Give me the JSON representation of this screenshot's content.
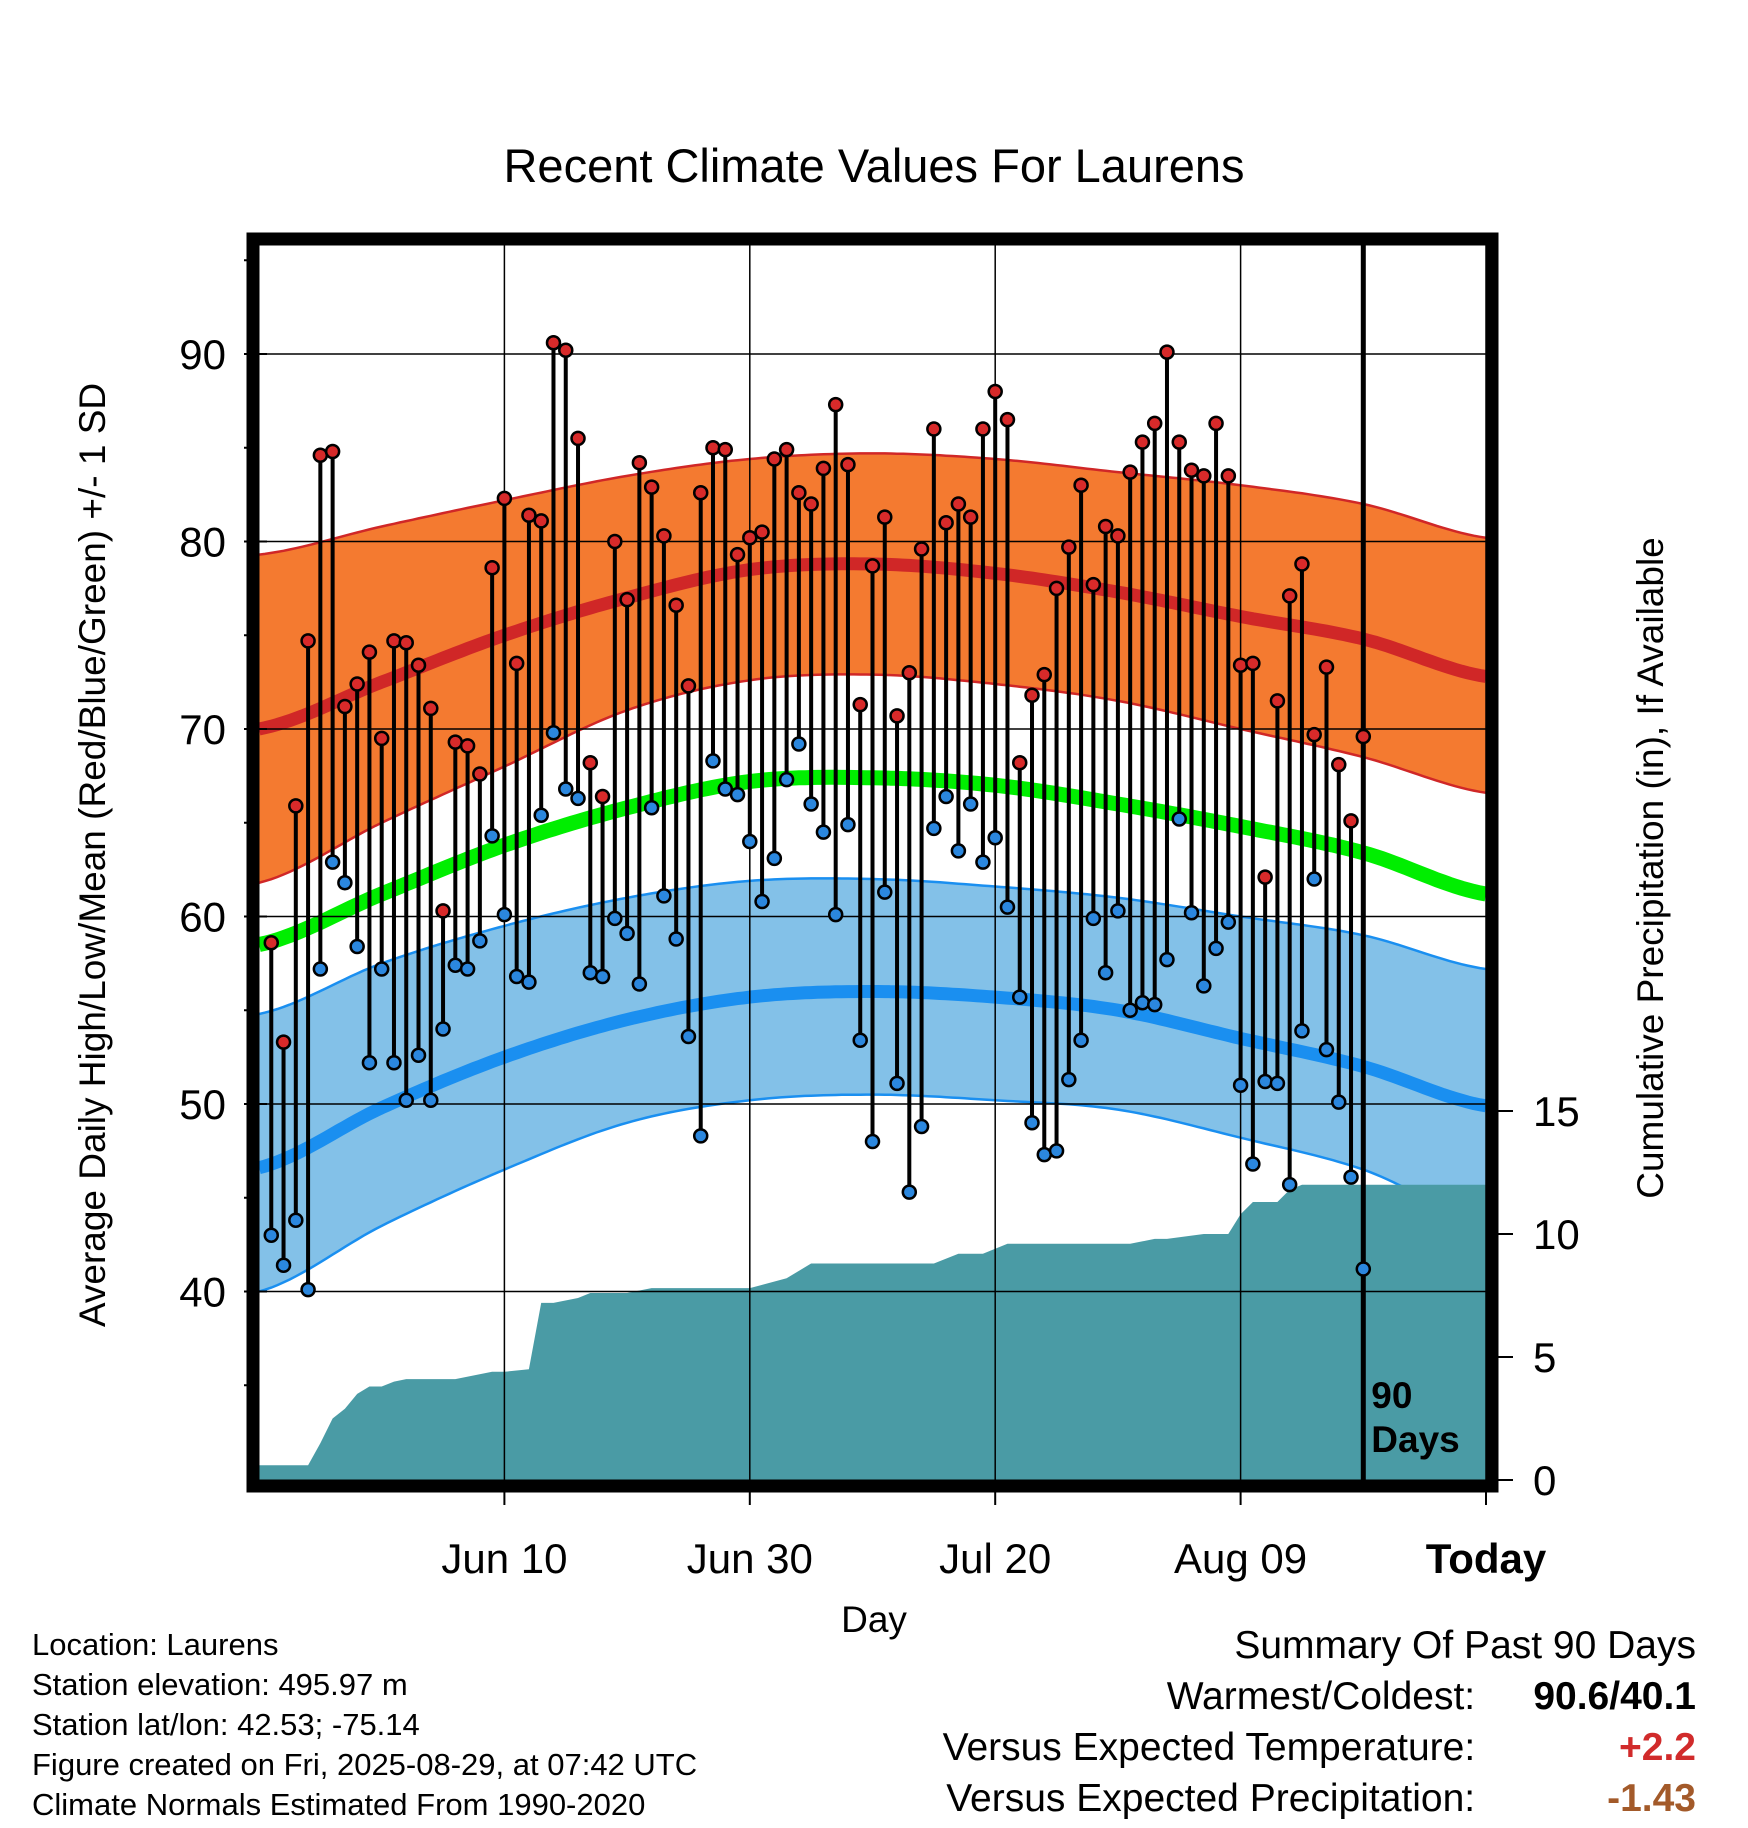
{
  "chart_data": {
    "type": "line",
    "title": "Recent Climate Values For Laurens",
    "xlabel": "Day",
    "ylabel": "Average Daily High/Low/Mean (Red/Blue/Green) +/- 1 SD",
    "y2label": "Cumulative Precipitation (in), If Available",
    "xticks": [
      "Jun 10",
      "Jun 30",
      "Jul 20",
      "Aug 09",
      "Today"
    ],
    "yticks": [
      40,
      50,
      60,
      70,
      80,
      90
    ],
    "y2ticks": [
      0,
      5,
      10,
      15
    ],
    "ylim": [
      30,
      96
    ],
    "y2lim": [
      0,
      15
    ],
    "day_range": [
      -90,
      10
    ],
    "marker_label": "90 Days",
    "grid": true,
    "colors": {
      "high_band": "#f47a30",
      "high_line": "#d02727",
      "low_band": "#83c1e8",
      "low_line": "#1a8ff0",
      "mean_line": "#00ee00",
      "precip": "#4a9ba5",
      "high_dot": "#d82a2a",
      "low_dot": "#2b87de"
    },
    "normals": {
      "days": [
        -90,
        -80,
        -70,
        -60,
        -50,
        -40,
        -30,
        -20,
        -10,
        0,
        10
      ],
      "high_mean": [
        70.0,
        72.5,
        75.0,
        77.0,
        78.5,
        78.8,
        78.3,
        77.3,
        76.0,
        74.8,
        72.8
      ],
      "high_upper": [
        79.3,
        80.8,
        82.2,
        83.5,
        84.4,
        84.7,
        84.4,
        83.7,
        83.0,
        82.0,
        80.2
      ],
      "high_lower": [
        61.8,
        65.0,
        68.0,
        71.0,
        72.6,
        72.9,
        72.4,
        71.5,
        70.0,
        68.5,
        66.6
      ],
      "low_mean": [
        46.6,
        49.8,
        52.5,
        54.5,
        55.7,
        56.0,
        55.7,
        55.0,
        53.5,
        52.0,
        49.9
      ],
      "low_upper": [
        54.8,
        57.5,
        59.5,
        61.0,
        61.9,
        62.0,
        61.6,
        61.0,
        60.0,
        59.0,
        57.2
      ],
      "low_lower": [
        40.0,
        43.5,
        46.5,
        49.0,
        50.2,
        50.5,
        50.2,
        49.7,
        48.2,
        46.5,
        43.7
      ],
      "mean": [
        58.5,
        61.2,
        63.8,
        65.8,
        67.2,
        67.4,
        67.0,
        66.0,
        64.8,
        63.4,
        61.2
      ]
    },
    "series": [
      {
        "name": "High",
        "days": [
          -89,
          -88,
          -87,
          -86,
          -85,
          -84,
          -83,
          -82,
          -81,
          -80,
          -79,
          -78,
          -77,
          -76,
          -75,
          -74,
          -73,
          -72,
          -71,
          -70,
          -69,
          -68,
          -67,
          -66,
          -65,
          -64,
          -63,
          -62,
          -61,
          -60,
          -59,
          -58,
          -57,
          -56,
          -55,
          -54,
          -53,
          -52,
          -51,
          -50,
          -49,
          -48,
          -47,
          -46,
          -45,
          -44,
          -43,
          -42,
          -41,
          -40,
          -39,
          -38,
          -37,
          -36,
          -35,
          -34,
          -33,
          -32,
          -31,
          -30,
          -29,
          -28,
          -27,
          -26,
          -25,
          -24,
          -23,
          -22,
          -21,
          -20,
          -19,
          -18,
          -17,
          -16,
          -15,
          -14,
          -13,
          -12,
          -11,
          -10,
          -9,
          -8,
          -7,
          -6,
          -5,
          -4,
          -3,
          -2,
          -1,
          0
        ],
        "values": [
          58.6,
          53.3,
          65.9,
          74.7,
          84.6,
          84.8,
          71.2,
          72.4,
          74.1,
          69.5,
          74.7,
          74.6,
          73.4,
          71.1,
          60.3,
          69.3,
          69.1,
          67.6,
          78.6,
          82.3,
          73.5,
          81.4,
          81.1,
          90.6,
          90.2,
          85.5,
          68.2,
          66.4,
          80.0,
          76.9,
          84.2,
          82.9,
          80.3,
          76.6,
          72.3,
          82.6,
          85.0,
          84.9,
          79.3,
          80.2,
          80.5,
          84.4,
          84.9,
          82.6,
          82.0,
          83.9,
          87.3,
          84.1,
          71.3,
          78.7,
          81.3,
          70.7,
          73.0,
          79.6,
          86.0,
          81.0,
          82.0,
          81.3,
          86.0,
          88.0,
          86.5,
          68.2,
          71.8,
          72.9,
          77.5,
          79.7,
          83.0,
          77.7,
          80.8,
          80.3,
          83.7,
          85.3,
          86.3,
          90.1,
          85.3,
          83.8,
          83.5,
          86.3,
          83.5,
          73.4,
          73.5,
          62.1,
          71.5,
          77.1,
          78.8,
          69.7,
          73.3,
          68.1,
          65.1,
          69.6
        ]
      },
      {
        "name": "Low",
        "days": [
          -89,
          -88,
          -87,
          -86,
          -85,
          -84,
          -83,
          -82,
          -81,
          -80,
          -79,
          -78,
          -77,
          -76,
          -75,
          -74,
          -73,
          -72,
          -71,
          -70,
          -69,
          -68,
          -67,
          -66,
          -65,
          -64,
          -63,
          -62,
          -61,
          -60,
          -59,
          -58,
          -57,
          -56,
          -55,
          -54,
          -53,
          -52,
          -51,
          -50,
          -49,
          -48,
          -47,
          -46,
          -45,
          -44,
          -43,
          -42,
          -41,
          -40,
          -39,
          -38,
          -37,
          -36,
          -35,
          -34,
          -33,
          -32,
          -31,
          -30,
          -29,
          -28,
          -27,
          -26,
          -25,
          -24,
          -23,
          -22,
          -21,
          -20,
          -19,
          -18,
          -17,
          -16,
          -15,
          -14,
          -13,
          -12,
          -11,
          -10,
          -9,
          -8,
          -7,
          -6,
          -5,
          -4,
          -3,
          -2,
          -1,
          0
        ],
        "values": [
          43.0,
          41.4,
          43.8,
          40.1,
          57.2,
          62.9,
          61.8,
          58.4,
          52.2,
          57.2,
          52.2,
          50.2,
          52.6,
          50.2,
          54.0,
          57.4,
          57.2,
          58.7,
          64.3,
          60.1,
          56.8,
          56.5,
          65.4,
          69.8,
          66.8,
          66.3,
          57.0,
          56.8,
          59.9,
          59.1,
          56.4,
          65.8,
          61.1,
          58.8,
          53.6,
          48.3,
          68.3,
          66.8,
          66.5,
          64.0,
          60.8,
          63.1,
          67.3,
          69.2,
          66.0,
          64.5,
          60.1,
          64.9,
          53.4,
          48.0,
          61.3,
          51.1,
          45.3,
          48.8,
          64.7,
          66.4,
          63.5,
          66.0,
          62.9,
          64.2,
          60.5,
          55.7,
          49.0,
          47.3,
          47.5,
          51.3,
          53.4,
          59.9,
          57.0,
          60.3,
          55.0,
          55.4,
          55.3,
          57.7,
          65.2,
          60.2,
          56.3,
          58.3,
          59.7,
          51.0,
          46.8,
          51.2,
          51.1,
          45.7,
          53.9,
          62.0,
          52.9,
          50.1,
          46.1,
          41.2
        ]
      }
    ],
    "precip": {
      "days": [
        -90,
        -86,
        -85,
        -84,
        -83,
        -82,
        -81,
        -80,
        -79,
        -78,
        -77,
        -74,
        -71,
        -70,
        -68,
        -67,
        -66,
        -64,
        -63,
        -60,
        -58,
        -55,
        -50,
        -47,
        -45,
        -44,
        -35,
        -33,
        -31,
        -29,
        -28,
        -19,
        -17,
        -16,
        -13,
        -11,
        -10,
        -9,
        -8,
        -7,
        -6,
        -5,
        -4,
        0,
        10
      ],
      "values": [
        0.6,
        0.6,
        1.5,
        2.5,
        2.9,
        3.5,
        3.8,
        3.8,
        4.0,
        4.1,
        4.1,
        4.1,
        4.4,
        4.4,
        4.5,
        7.2,
        7.2,
        7.4,
        7.6,
        7.6,
        7.8,
        7.8,
        7.8,
        8.2,
        8.8,
        8.8,
        8.8,
        9.2,
        9.2,
        9.6,
        9.6,
        9.6,
        9.8,
        9.8,
        10.0,
        10.0,
        10.8,
        11.3,
        11.3,
        11.3,
        11.8,
        12.0,
        12.0,
        12.0,
        12.0
      ]
    }
  },
  "info": {
    "location": "Location: Laurens",
    "elevation": "Station elevation: 495.97 m",
    "latlon": "Station lat/lon: 42.53; -75.14",
    "created": "Figure created on Fri, 2025-08-29, at 07:42 UTC",
    "normals": "Climate Normals Estimated From 1990-2020"
  },
  "summary": {
    "heading": "Summary Of Past 90 Days",
    "warm_label": "Warmest/Coldest:",
    "warm_value": "90.6/40.1",
    "temp_label": "Versus Expected Temperature:",
    "temp_value": "+2.2",
    "temp_color": "#d12b2b",
    "precip_label": "Versus Expected Precipitation:",
    "precip_value": "-1.43",
    "precip_color": "#a35a2a"
  }
}
